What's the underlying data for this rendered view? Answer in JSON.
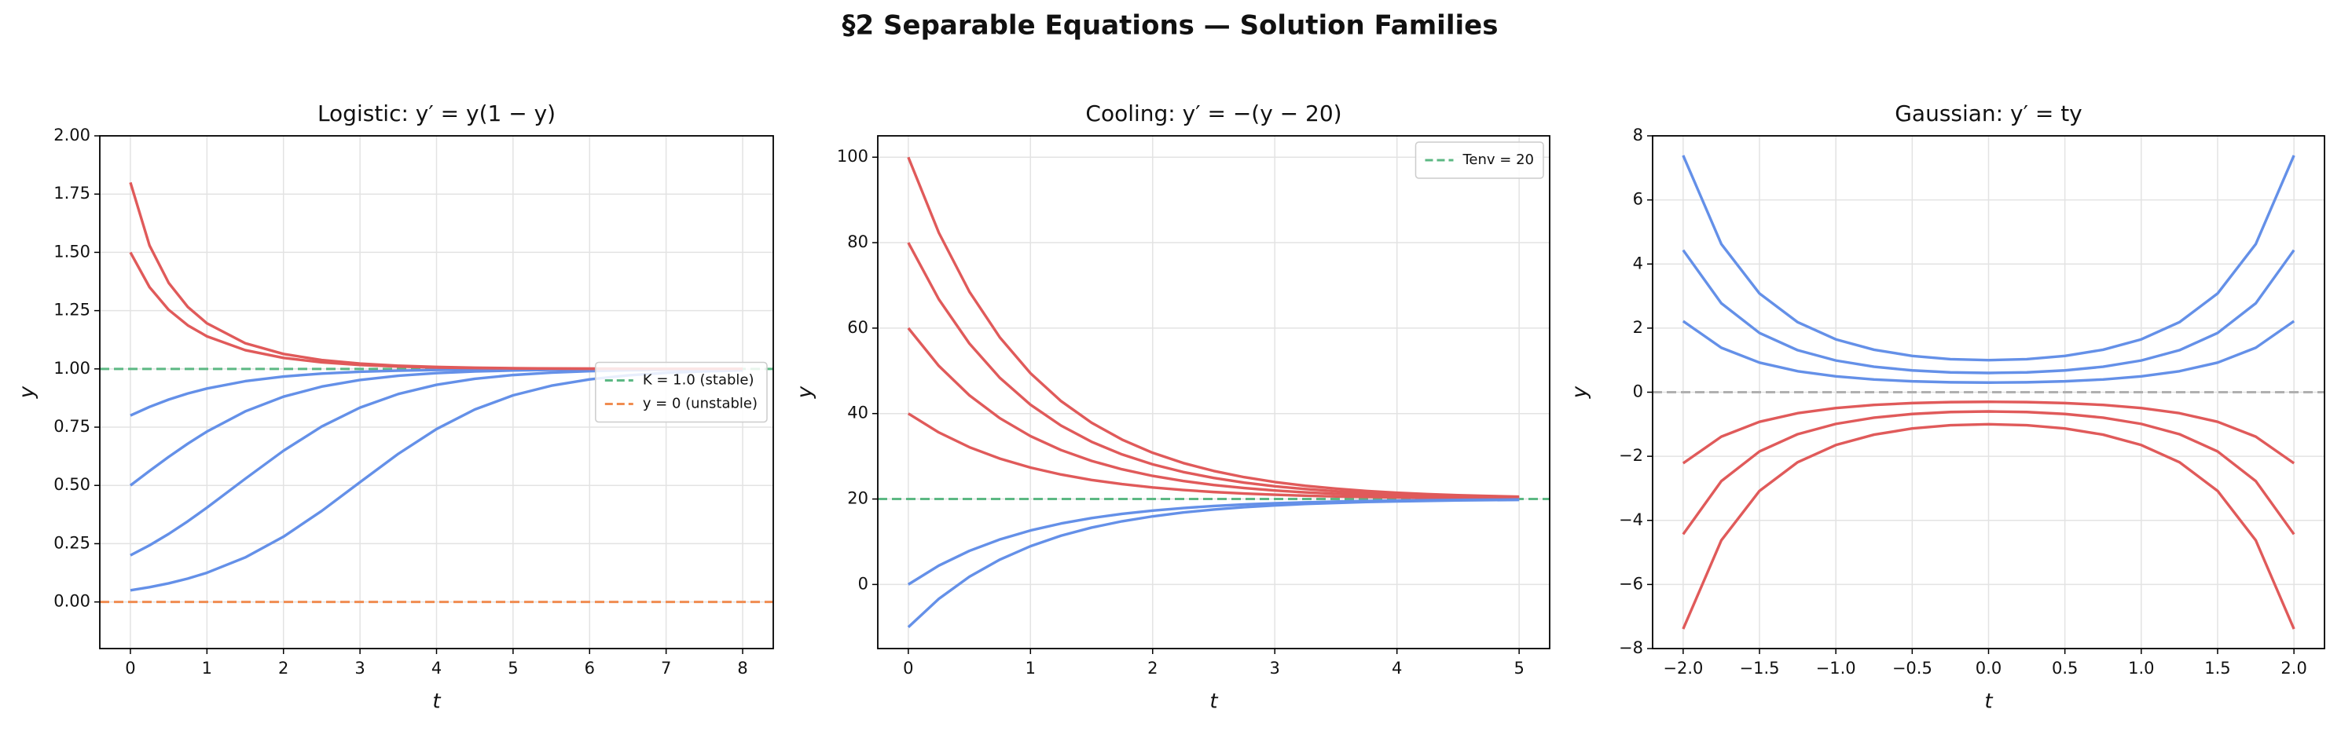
{
  "title": "§2  Separable Equations — Solution Families",
  "chart_data": [
    {
      "type": "line",
      "title": "Logistic: y′ = y(1 − y)",
      "x_label": "t",
      "y_label": "y",
      "x": [
        0,
        0.25,
        0.5,
        0.75,
        1,
        1.5,
        2,
        2.5,
        3,
        3.5,
        4,
        4.5,
        5,
        5.5,
        6,
        6.5,
        7,
        7.5,
        8
      ],
      "series": [
        {
          "color": "#6490e8",
          "values": [
            0.05,
            0.0633,
            0.0799,
            0.1002,
            0.1252,
            0.1909,
            0.28,
            0.3906,
            0.5139,
            0.6354,
            0.7419,
            0.8258,
            0.8865,
            0.9279,
            0.955,
            0.9723,
            0.983,
            0.9896,
            0.9937
          ]
        },
        {
          "color": "#6490e8",
          "values": [
            0.2,
            0.243,
            0.2919,
            0.3461,
            0.4046,
            0.5284,
            0.6488,
            0.7528,
            0.8339,
            0.8922,
            0.9318,
            0.9575,
            0.9737,
            0.9839,
            0.9902,
            0.994,
            0.9964,
            0.9978,
            0.9986
          ]
        },
        {
          "color": "#6490e8",
          "values": [
            0.5,
            0.5622,
            0.6225,
            0.6792,
            0.7311,
            0.8176,
            0.8808,
            0.9241,
            0.9526,
            0.9707,
            0.982,
            0.989,
            0.9933,
            0.9959,
            0.9975,
            0.9985,
            0.9991,
            0.9994,
            0.9997
          ]
        },
        {
          "color": "#6490e8",
          "values": [
            0.8,
            0.837,
            0.8684,
            0.8944,
            0.9158,
            0.9472,
            0.9673,
            0.9799,
            0.9877,
            0.9925,
            0.9954,
            0.9972,
            0.9983,
            0.999,
            0.9994,
            0.9996,
            0.9998,
            0.9999,
            0.9999
          ]
        },
        {
          "color": "#e05a5a",
          "values": [
            1.5,
            1.3506,
            1.2534,
            1.1869,
            1.1397,
            1.0804,
            1.0472,
            1.0282,
            1.0169,
            1.0102,
            1.0061,
            1.0037,
            1.0023,
            1.0014,
            1.0008,
            1.0005,
            1.0003,
            1.0002,
            1.0001
          ]
        },
        {
          "color": "#e05a5a",
          "values": [
            1.8,
            1.5293,
            1.3691,
            1.2658,
            1.1955,
            1.1101,
            1.064,
            1.0379,
            1.0226,
            1.0136,
            1.0082,
            1.005,
            1.003,
            1.0018,
            1.0011,
            1.0007,
            1.0004,
            1.0002,
            1.0002
          ]
        }
      ],
      "hlines": [
        {
          "y": 1,
          "color": "#5cb883",
          "label": "K = 1.0 (stable)"
        },
        {
          "y": 0,
          "color": "#f08c50",
          "label": "y = 0 (unstable)"
        }
      ],
      "legend": "center right",
      "xlim": [
        -0.4,
        8.4
      ],
      "xticks": [
        0,
        1,
        2,
        3,
        4,
        5,
        6,
        7,
        8
      ],
      "ylim": [
        -0.2,
        2.0
      ],
      "yticks": [
        {
          "value": 0,
          "label": "0.00"
        },
        {
          "value": 0.25,
          "label": "0.25"
        },
        {
          "value": 0.5,
          "label": "0.50"
        },
        {
          "value": 0.75,
          "label": "0.75"
        },
        {
          "value": 1,
          "label": "1.00"
        },
        {
          "value": 1.25,
          "label": "1.25"
        },
        {
          "value": 1.5,
          "label": "1.50"
        },
        {
          "value": 1.75,
          "label": "1.75"
        },
        {
          "value": 2,
          "label": "2.00"
        }
      ],
      "grid": true
    },
    {
      "type": "line",
      "title": "Cooling: y′ = −(y − 20)",
      "x_label": "t",
      "y_label": "y",
      "x": [
        0,
        0.25,
        0.5,
        0.75,
        1,
        1.25,
        1.5,
        1.75,
        2,
        2.25,
        2.5,
        2.75,
        3,
        3.25,
        3.5,
        3.75,
        4,
        4.25,
        4.5,
        4.75,
        5
      ],
      "series": [
        {
          "color": "#e05a5a",
          "values": [
            100,
            82.3,
            68.52,
            57.79,
            49.43,
            42.92,
            37.85,
            33.9,
            30.82,
            28.43,
            26.57,
            25.11,
            23.98,
            23.1,
            22.42,
            21.88,
            21.46,
            21.14,
            20.89,
            20.7,
            20.54
          ]
        },
        {
          "color": "#e05a5a",
          "values": [
            80,
            66.73,
            56.39,
            48.34,
            42.07,
            37.19,
            33.39,
            30.43,
            28.12,
            26.32,
            24.93,
            23.83,
            22.99,
            22.33,
            21.81,
            21.41,
            21.1,
            20.86,
            20.67,
            20.52,
            20.4
          ]
        },
        {
          "color": "#e05a5a",
          "values": [
            60,
            51.15,
            44.26,
            38.9,
            34.72,
            31.46,
            28.92,
            26.95,
            25.41,
            24.22,
            23.28,
            22.56,
            21.99,
            21.55,
            21.21,
            20.94,
            20.73,
            20.57,
            20.44,
            20.35,
            20.27
          ]
        },
        {
          "color": "#e05a5a",
          "values": [
            40,
            35.58,
            32.13,
            29.45,
            27.36,
            25.73,
            24.46,
            23.48,
            22.71,
            22.11,
            21.64,
            21.28,
            21.0,
            20.78,
            20.6,
            20.47,
            20.37,
            20.29,
            20.22,
            20.17,
            20.13
          ]
        },
        {
          "color": "#6490e8",
          "values": [
            0,
            4.42,
            7.87,
            10.55,
            12.64,
            14.27,
            15.54,
            16.52,
            17.29,
            17.89,
            18.36,
            18.72,
            19.0,
            19.22,
            19.4,
            19.53,
            19.63,
            19.71,
            19.78,
            19.83,
            19.87
          ]
        },
        {
          "color": "#6490e8",
          "values": [
            -10,
            -3.36,
            1.81,
            5.83,
            8.96,
            11.41,
            13.31,
            14.79,
            15.94,
            16.84,
            17.54,
            18.08,
            18.51,
            18.84,
            19.09,
            19.3,
            19.45,
            19.57,
            19.67,
            19.74,
            19.8
          ]
        }
      ],
      "hlines": [
        {
          "y": 20,
          "color": "#5cb883",
          "label": "Tenv = 20"
        }
      ],
      "legend": "upper right",
      "xlim": [
        -0.25,
        5.25
      ],
      "xticks": [
        0,
        1,
        2,
        3,
        4,
        5
      ],
      "ylim": [
        -15,
        105
      ],
      "yticks": [
        0,
        20,
        40,
        60,
        80,
        100
      ],
      "grid": true
    },
    {
      "type": "line",
      "title": "Gaussian: y′ = ty",
      "x_label": "t",
      "y_label": "y",
      "x": [
        -2,
        -1.75,
        -1.5,
        -1.25,
        -1,
        -0.75,
        -0.5,
        -0.25,
        0,
        0.25,
        0.5,
        0.75,
        1,
        1.25,
        1.5,
        1.75,
        2
      ],
      "series": [
        {
          "color": "#6490e8",
          "values": [
            7.3891,
            4.6238,
            3.0802,
            2.1842,
            1.6487,
            1.3248,
            1.1331,
            1.0317,
            1,
            1.0317,
            1.1331,
            1.3248,
            1.6487,
            2.1842,
            3.0802,
            4.6238,
            7.3891
          ]
        },
        {
          "color": "#6490e8",
          "values": [
            4.4335,
            2.7743,
            1.8481,
            1.3105,
            0.9892,
            0.7949,
            0.6799,
            0.619,
            0.6,
            0.619,
            0.6799,
            0.7949,
            0.9892,
            1.3105,
            1.8481,
            2.7743,
            4.4335
          ]
        },
        {
          "color": "#6490e8",
          "values": [
            2.2167,
            1.3871,
            0.9241,
            0.6553,
            0.4946,
            0.3974,
            0.3399,
            0.3095,
            0.3,
            0.3095,
            0.3399,
            0.3974,
            0.4946,
            0.6553,
            0.9241,
            1.3871,
            2.2167
          ]
        },
        {
          "color": "#e05a5a",
          "values": [
            -2.2167,
            -1.3871,
            -0.9241,
            -0.6553,
            -0.4946,
            -0.3974,
            -0.3399,
            -0.3095,
            -0.3,
            -0.3095,
            -0.3399,
            -0.3974,
            -0.4946,
            -0.6553,
            -0.9241,
            -1.3871,
            -2.2167
          ]
        },
        {
          "color": "#e05a5a",
          "values": [
            -4.4335,
            -2.7743,
            -1.8481,
            -1.3105,
            -0.9892,
            -0.7949,
            -0.6799,
            -0.619,
            -0.6,
            -0.619,
            -0.6799,
            -0.7949,
            -0.9892,
            -1.3105,
            -1.8481,
            -2.7743,
            -4.4335
          ]
        },
        {
          "color": "#e05a5a",
          "values": [
            -7.3891,
            -4.6238,
            -3.0802,
            -2.1842,
            -1.6487,
            -1.3248,
            -1.1331,
            -1.0317,
            -1,
            -1.0317,
            -1.1331,
            -1.3248,
            -1.6487,
            -2.1842,
            -3.0802,
            -4.6238,
            -7.3891
          ]
        }
      ],
      "hlines": [
        {
          "y": 0,
          "color": "#b0b0b0"
        }
      ],
      "xlim": [
        -2.2,
        2.2
      ],
      "xticks": [
        {
          "value": -2,
          "label": "−2.0"
        },
        {
          "value": -1.5,
          "label": "−1.5"
        },
        {
          "value": -1,
          "label": "−1.0"
        },
        {
          "value": -0.5,
          "label": "−0.5"
        },
        {
          "value": 0,
          "label": "0.0"
        },
        0.5,
        {
          "value": 1,
          "label": "1.0"
        },
        1.5,
        {
          "value": 2,
          "label": "2.0"
        }
      ],
      "ylim": [
        -8,
        8
      ],
      "yticks": [
        {
          "value": -8,
          "label": "−8"
        },
        {
          "value": -6,
          "label": "−6"
        },
        {
          "value": -4,
          "label": "−4"
        },
        {
          "value": -2,
          "label": "−2"
        },
        0,
        2,
        4,
        6,
        8
      ],
      "grid": true
    }
  ]
}
